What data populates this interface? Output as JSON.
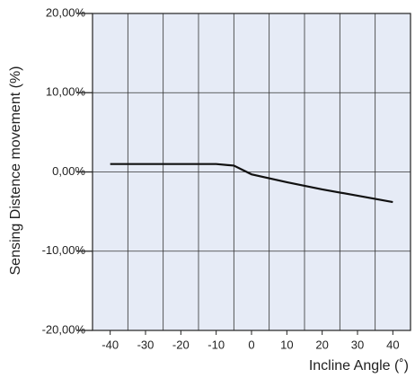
{
  "chart_data": {
    "type": "line",
    "x_label": "Incline Angle (˚)",
    "y_label": "Sensing Distence movement (%)",
    "x": [
      -40,
      -30,
      -20,
      -10,
      -5,
      0,
      10,
      20,
      30,
      40
    ],
    "series": [
      {
        "color": "#111111",
        "values": [
          1,
          1,
          1,
          1,
          0.8,
          -0.3,
          -1.3,
          -2.2,
          -3.0,
          -3.8
        ]
      }
    ],
    "xlim": [
      -45,
      45
    ],
    "xticks": [
      -40,
      -30,
      -20,
      -10,
      0,
      10,
      20,
      30,
      40
    ],
    "x_gridlines": [
      -35,
      -25,
      -15,
      -5,
      5,
      15,
      25,
      35
    ],
    "ylim": [
      -20,
      20
    ],
    "yticks": [
      {
        "value": -20,
        "label": "-20,00%"
      },
      {
        "value": -10,
        "label": "-10,00%"
      },
      {
        "value": 0,
        "label": "0,00%"
      },
      {
        "value": 10,
        "label": "10,00%"
      },
      {
        "value": 20,
        "label": "20,00%"
      }
    ],
    "grid": true,
    "plot_background": "#e6ebf6"
  }
}
